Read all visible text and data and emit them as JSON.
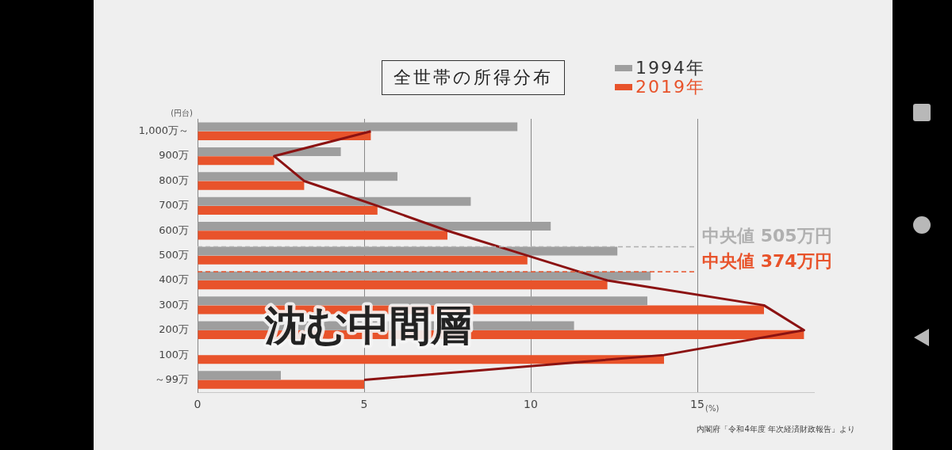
{
  "chart_data": {
    "type": "bar",
    "orientation": "horizontal",
    "title": "全世帯の所得分布",
    "ylabel": "(円台)",
    "xlabel": "(%)",
    "categories": [
      "1,000万～",
      "900万",
      "800万",
      "700万",
      "600万",
      "500万",
      "400万",
      "300万",
      "200万",
      "100万",
      "～99万"
    ],
    "series": [
      {
        "name": "1994年",
        "color": "#9e9e9e",
        "values": [
          9.6,
          4.3,
          6.0,
          8.2,
          10.6,
          12.6,
          13.6,
          13.5,
          11.3,
          null,
          2.5
        ]
      },
      {
        "name": "2019年",
        "color": "#e8532b",
        "values": [
          5.2,
          2.3,
          3.2,
          5.4,
          7.5,
          9.9,
          12.3,
          17.0,
          18.2,
          14.0,
          5.0
        ]
      },
      {
        "type": "line",
        "color": "#8b1212",
        "values": [
          5.2,
          2.3,
          3.2,
          5.4,
          7.5,
          9.9,
          12.3,
          17.0,
          18.2,
          14.0,
          5.0
        ]
      }
    ],
    "xlim": [
      0,
      18.5
    ],
    "xticks": [
      0,
      5,
      10,
      15
    ],
    "grid": "x",
    "legend": "top right",
    "marker": "none",
    "ref_lines": [
      {
        "axis": "y",
        "value": "500万",
        "label": "中央値 505万円",
        "color": "#b0b0b0",
        "line_style": "dashed"
      },
      {
        "axis": "y",
        "value": "400万",
        "label": "中央値 374万円",
        "color": "#e8532b",
        "line_style": "dashed"
      }
    ],
    "annotations": [
      "沈む中間層",
      "内閣府「令和4年度 年次経済財政報告」より"
    ]
  }
}
